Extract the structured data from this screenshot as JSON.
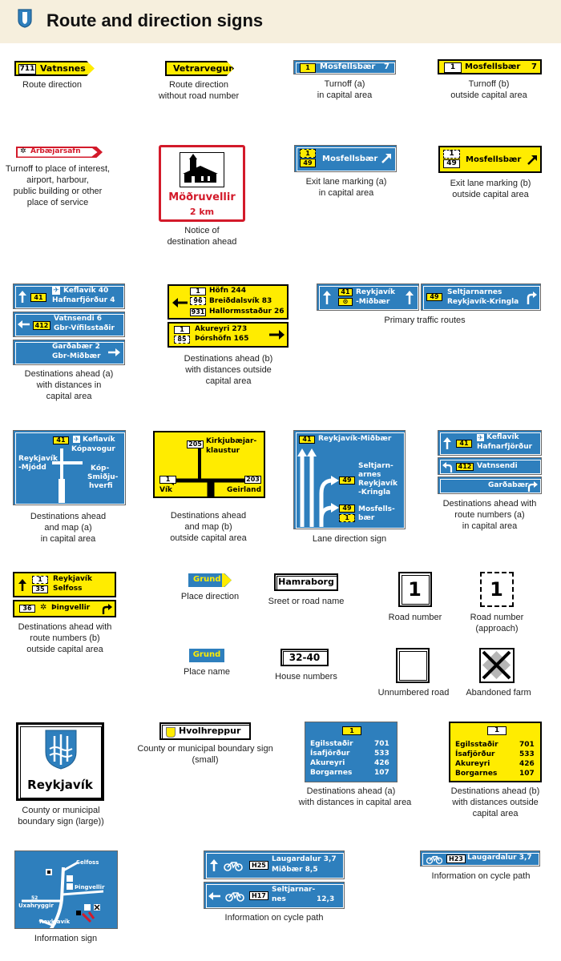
{
  "header": {
    "title": "Route and direction signs"
  },
  "captions": {
    "route_direction": "Route direction",
    "route_direction_no_number_1": "Route direction",
    "route_direction_no_number_2": "without road number",
    "turnoff_a_1": "Turnoff (a)",
    "turnoff_a_2": "in capital area",
    "turnoff_b_1": "Turnoff (b)",
    "turnoff_b_2": "outside capital area",
    "place_interest_1": "Turnoff to place of interest,",
    "place_interest_2": "airport, harbour,",
    "place_interest_3": "public building or other",
    "place_interest_4": "place of service",
    "notice_1": "Notice of",
    "notice_2": "destination ahead",
    "exit_a_1": "Exit lane marking (a)",
    "exit_a_2": "in capital area",
    "exit_b_1": "Exit lane marking (b)",
    "exit_b_2": "outside capital area",
    "dest_a_1": "Destinations ahead (a)",
    "dest_a_2": "with distances in",
    "dest_a_3": "capital area",
    "dest_b_1": "Destinations ahead (b)",
    "dest_b_2": "with distances outside",
    "dest_b_3": "capital area",
    "primary": "Primary traffic routes",
    "map_a_1": "Destinations ahead",
    "map_a_2": "and map (a)",
    "map_a_3": "in capital area",
    "map_b_1": "Destinations ahead",
    "map_b_2": "and map (b)",
    "map_b_3": "outside capital area",
    "lane": "Lane direction sign",
    "routenum_a_1": "Destinations ahead with",
    "routenum_a_2": "route numbers (a)",
    "routenum_a_3": "in capital area",
    "routenum_b_1": "Destinations ahead with",
    "routenum_b_2": "route numbers (b)",
    "routenum_b_3": "outside capital area",
    "place_direction": "Place direction",
    "street_name": "Sreet or road name",
    "road_number": "Road number",
    "road_number_approach_1": "Road number",
    "road_number_approach_2": "(approach)",
    "place_name": "Place name",
    "house_numbers": "House numbers",
    "unnumbered": "Unnumbered road",
    "abandoned": "Abandoned farm",
    "county_small_1": "County or municipal boundary sign",
    "county_small_2": "(small)",
    "county_large_1": "County or municipal",
    "county_large_2": "boundary sign (large))",
    "dist_a_1": "Destinations ahead (a)",
    "dist_a_2": "with distances in capital area",
    "dist_b_1": "Destinations ahead (b)",
    "dist_b_2": "with distances outside",
    "dist_b_3": "capital area",
    "info_sign": "Information sign",
    "cycle_1": "Information on cycle path",
    "cycle_2": "Information on cycle path"
  },
  "signs": {
    "s1": {
      "num": "711",
      "name": "Vatnsnes"
    },
    "s2": {
      "name": "Vetrarvegur"
    },
    "s3": {
      "num": "1",
      "name": "Mosfellsbær",
      "dist": "7"
    },
    "s4": {
      "num": "1",
      "name": "Mosfellsbær",
      "dist": "7"
    },
    "s5": {
      "name": "Árbæjarsafn"
    },
    "s6": {
      "name": "Möðruvellir",
      "dist": "2 km"
    },
    "s7": {
      "num_top": "1",
      "num_bottom": "49",
      "name": "Mosfellsbær"
    },
    "s8": {
      "num_top": "1",
      "num_bottom": "49",
      "name": "Mosfellsbær"
    },
    "s9": {
      "r1_num": "41",
      "r1_l1": "Keflavík 40",
      "r1_l2": "Hafnarfjörður 4",
      "r2_num": "412",
      "r2_l1": "Vatnsendi 6",
      "r2_l2": "Gbr-Vífilsstaðir",
      "r3_l1": "Garðabær 2",
      "r3_l2": "Gbr-Miðbær"
    },
    "s10": {
      "num1": "1",
      "num2": "96",
      "num3": "931",
      "l1": "Höfn 244",
      "l2": "Breiðdalsvík 83",
      "l3": "Hallormsstaður 26",
      "num4": "1",
      "num5": "85",
      "l4": "Akureyri 273",
      "l5": "Þórshöfn 165"
    },
    "s11": {
      "num1": "41",
      "l1": "Reykjavík",
      "l2": "-Miðbær",
      "num2": "49",
      "l3": "Seltjarnarnes",
      "l4": "Reykjavík-Kringla"
    },
    "s12": {
      "num": "41",
      "l1": "Keflavík",
      "l2": "Kópavogur",
      "left1": "Reykjavík",
      "left2": "-Mjódd",
      "right1": "Kóp-",
      "right2": "Smiðju-",
      "right3": "hverfi"
    },
    "s13": {
      "num1": "205",
      "l1": "Kirkjubæjar-",
      "l2": "klaustur",
      "num2": "1",
      "left": "Vík",
      "num3": "203",
      "right": "Geirland"
    },
    "s14": {
      "num1": "41",
      "l1": "Reykjavík-Miðbær",
      "num2": "49",
      "l2": "Seltjarn-",
      "l3": "arnes",
      "l4": "Reykjavík",
      "l5": "-Kringla",
      "num3": "49",
      "num4": "1",
      "l6": "Mosfells-",
      "l7": "bær"
    },
    "s15": {
      "num1": "41",
      "l1": "Keflavík",
      "l2": "Hafnarfjörður",
      "num2": "412",
      "l3": "Vatnsendi",
      "l4": "Garðabær"
    },
    "s16": {
      "num1": "1",
      "num2": "35",
      "l1": "Reykjavík",
      "l2": "Selfoss",
      "num3": "36",
      "l3": "Þingvellir"
    },
    "s17": {
      "name": "Grund"
    },
    "s18": {
      "name": "Hamraborg"
    },
    "s19": {
      "num": "1"
    },
    "s20": {
      "num": "1"
    },
    "s21": {
      "name": "Grund"
    },
    "s22": {
      "name": "32-40"
    },
    "s25": {
      "name": "Hvolhreppur"
    },
    "s26": {
      "name": "Reykjavík"
    },
    "s27": {
      "num": "1",
      "rows": [
        {
          "name": "Egilsstaðir",
          "dist": "701"
        },
        {
          "name": "Ísafjörður",
          "dist": "533"
        },
        {
          "name": "Akureyri",
          "dist": "426"
        },
        {
          "name": "Borgarnes",
          "dist": "107"
        }
      ]
    },
    "s28": {
      "num": "1",
      "rows": [
        {
          "name": "Egilsstaðir",
          "dist": "701"
        },
        {
          "name": "Ísafjörður",
          "dist": "533"
        },
        {
          "name": "Akureyri",
          "dist": "426"
        },
        {
          "name": "Borgarnes",
          "dist": "107"
        }
      ]
    },
    "s29": {
      "l1": "Selfoss",
      "l2": "Þingvellir",
      "num": "52",
      "l3": "Uxahryggir",
      "l4": "Reykjavík"
    },
    "s30": {
      "code1": "H25",
      "l1": "Laugardalur 3,7",
      "l2": "Miðbær 8,5",
      "code2": "H17",
      "l3": "Seltjarnar-",
      "l4": "nes",
      "d3": "12,3"
    },
    "s31": {
      "code": "H23",
      "l1": "Laugardalur 3,7"
    }
  }
}
